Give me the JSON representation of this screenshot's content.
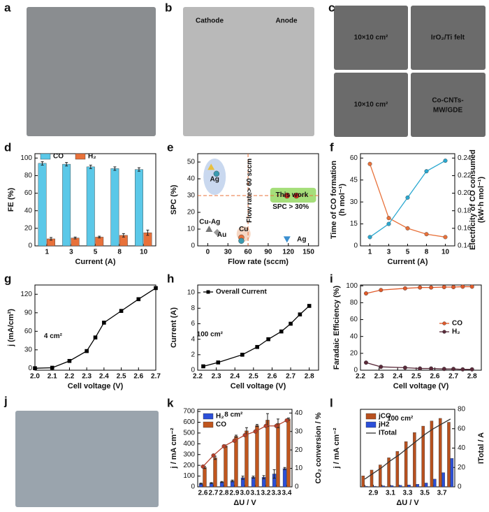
{
  "photos": [
    {
      "label": "a",
      "texts": []
    },
    {
      "label": "b",
      "texts": [
        "Cathode",
        "Anode"
      ]
    },
    {
      "label": "c",
      "texts": [
        "10×10 cm²",
        "IrO₂/Ti felt",
        "10×10 cm²",
        "Co-CNTs-",
        "MW/GDE"
      ]
    },
    {
      "label": "j",
      "texts": []
    }
  ],
  "chart_data": [
    {
      "type": "bar",
      "label": "d",
      "xlabel": "Current (A)",
      "ylabel": "FE (%)",
      "categories": [
        "1",
        "3",
        "5",
        "8",
        "10"
      ],
      "ylim": [
        0,
        105
      ],
      "yticks": [
        0,
        20,
        40,
        60,
        80,
        100
      ],
      "legend": "top",
      "series": [
        {
          "name": "CO",
          "color": "#5bc8e8",
          "values": [
            94,
            93,
            90,
            88,
            87
          ],
          "errors": [
            2,
            2,
            2,
            2,
            2
          ]
        },
        {
          "name": "H₂",
          "color": "#e8713a",
          "values": [
            8,
            9,
            10,
            12,
            15
          ],
          "errors": [
            1.5,
            1,
            1,
            2,
            3
          ]
        }
      ]
    },
    {
      "type": "scatter",
      "label": "e",
      "xlabel": "Flow rate (sccm)",
      "ylabel": "SPC (%)",
      "xlim": [
        -15,
        165
      ],
      "xticks": [
        0,
        30,
        60,
        90,
        120,
        150
      ],
      "ylim": [
        0,
        55
      ],
      "yticks": [
        0,
        10,
        20,
        30,
        40,
        50
      ],
      "hlines": [
        30
      ],
      "vlines": [
        60
      ],
      "x": [
        5,
        13,
        2,
        14,
        50,
        50,
        118,
        132,
        118
      ],
      "y": [
        47,
        43,
        10,
        8,
        5,
        3,
        30,
        30,
        4
      ],
      "colors": [
        "#e8c040",
        "#3a9ab0",
        "#777777",
        "#999999",
        "#e8713a",
        "#3a9ab0",
        "#d03020",
        "#d03020",
        "#3a8fd0"
      ],
      "markers": [
        "triangle",
        "circle",
        "triangle",
        "diamond",
        "circle",
        "circle",
        "circle",
        "circle",
        "triangle-down"
      ],
      "annotations": [
        "Ag",
        "Cu-Ag",
        "Au",
        "Cu",
        "This work",
        "SPC > 30%",
        "Flow rate> 60 sccm",
        "Ag"
      ]
    },
    {
      "type": "line",
      "label": "f",
      "xlabel": "Current (A)",
      "ylabel": [
        "Time of CO formation",
        "(h mol⁻¹)"
      ],
      "y2label": [
        "Electricity of CO consumed",
        "(kW·h mol⁻¹)"
      ],
      "categories": [
        "1",
        "3",
        "5",
        "8",
        "10"
      ],
      "ylim": [
        0,
        63
      ],
      "yticks": [
        0,
        15,
        30,
        45,
        60
      ],
      "y2lim": [
        0.14,
        0.245
      ],
      "y2ticks": [
        0.14,
        0.16,
        0.18,
        {
          "value": 0.2,
          "label": "0.20"
        },
        0.22,
        0.24
      ],
      "series": [
        {
          "color": "#e8713a",
          "marker": "circle",
          "values": [
            56,
            19,
            12,
            8,
            6
          ]
        },
        {
          "color": "#2aa8d0",
          "marker": "circle",
          "axis": "y2",
          "values": [
            0.15,
            0.165,
            0.195,
            0.225,
            0.237
          ]
        }
      ]
    },
    {
      "type": "line",
      "label": "g",
      "xlabel": "Cell voltage (V)",
      "ylabel": "j (mA/cm²)",
      "xlim": [
        2.0,
        2.7
      ],
      "xticks": [
        {
          "value": 2,
          "label": "2.0"
        },
        2.1,
        2.2,
        2.3,
        2.4,
        2.5,
        2.6,
        2.7
      ],
      "ylim": [
        -3,
        135
      ],
      "yticks": [
        0,
        30,
        60,
        90,
        120
      ],
      "annotations": [
        "4 cm²"
      ],
      "x": [
        2.0,
        2.1,
        2.2,
        2.3,
        2.35,
        2.4,
        2.5,
        2.6,
        2.7
      ],
      "series": [
        {
          "color": "#000000",
          "marker": "square",
          "values": [
            0.2,
            1,
            12,
            28,
            50,
            74,
            93,
            112,
            130
          ]
        }
      ]
    },
    {
      "type": "line",
      "label": "h",
      "xlabel": "Cell voltage (V)",
      "ylabel": "Current (A)",
      "xlim": [
        2.2,
        2.85
      ],
      "xticks": [
        2.2,
        2.3,
        2.4,
        2.5,
        2.6,
        2.7,
        2.8
      ],
      "ylim": [
        0,
        11
      ],
      "yticks": [
        0,
        2,
        4,
        6,
        8,
        10
      ],
      "legend": "upper left",
      "annotations": [
        "100 cm²"
      ],
      "x": [
        2.23,
        2.31,
        2.44,
        2.52,
        2.58,
        2.65,
        2.7,
        2.75,
        2.8
      ],
      "series": [
        {
          "name": "Overall Current",
          "color": "#000000",
          "marker": "square",
          "values": [
            0.5,
            1.0,
            2.0,
            3.0,
            4.0,
            5.0,
            6.0,
            7.2,
            8.3
          ]
        }
      ]
    },
    {
      "type": "line",
      "label": "i",
      "xlabel": "Cell voltage (V)",
      "ylabel": "Faradaic Efficiency (%)",
      "xlim": [
        2.2,
        2.85
      ],
      "xticks": [
        2.2,
        2.3,
        2.4,
        2.5,
        2.6,
        2.7,
        2.8
      ],
      "ylim": [
        0,
        101
      ],
      "yticks": [
        0,
        20,
        40,
        60,
        80,
        100
      ],
      "legend": "center right",
      "x": [
        2.23,
        2.31,
        2.44,
        2.52,
        2.58,
        2.65,
        2.7,
        2.75,
        2.8
      ],
      "series": [
        {
          "name": "CO",
          "color": "#e05a2a",
          "marker": "circle",
          "values": [
            91,
            95,
            97,
            98,
            98,
            98.5,
            98.5,
            99,
            99
          ]
        },
        {
          "name": "H₂",
          "color": "#5a2a3a",
          "marker": "circle",
          "values": [
            9,
            4,
            3,
            2,
            2,
            1.5,
            1.5,
            1,
            1
          ]
        }
      ]
    },
    {
      "type": "bar",
      "label": "k",
      "xlabel": "ΔU / V",
      "ylabel": "j / mA cm⁻²",
      "y2label": "CO₂ conversion / %",
      "categories": [
        "2.6",
        "2.7",
        "2.8",
        "2.9",
        "3.0",
        "3.1",
        "3.2",
        "3.3",
        "3.4"
      ],
      "ylim": [
        0,
        720
      ],
      "yticks": [
        0,
        100,
        200,
        300,
        400,
        500,
        600,
        700
      ],
      "y2lim": [
        0,
        42
      ],
      "y2ticks": [
        0,
        10,
        20,
        30,
        40
      ],
      "legend": "upper left",
      "annotations": [
        "8 cm²"
      ],
      "series": [
        {
          "name": "H₂",
          "color": "#2b4fd8",
          "values": [
            30,
            35,
            45,
            55,
            85,
            90,
            90,
            120,
            170
          ],
          "errors": [
            5,
            5,
            5,
            8,
            15,
            10,
            15,
            40,
            10
          ]
        },
        {
          "name": "CO",
          "color": "#c0561e",
          "values": [
            180,
            270,
            380,
            470,
            520,
            570,
            620,
            590,
            630
          ],
          "errors": [
            10,
            15,
            10,
            10,
            30,
            10,
            60,
            40,
            10
          ]
        },
        {
          "type": "line",
          "color": "#b5402a",
          "marker": "circle",
          "axis": "y2",
          "values": [
            11,
            17,
            22,
            25,
            28,
            30,
            33,
            33,
            36
          ]
        }
      ]
    },
    {
      "type": "bar",
      "label": "l",
      "xlabel": "ΔU / V",
      "ylabel": "j / mA cm⁻²",
      "y2label": "ITotal / A",
      "categories": [
        null,
        "2.9",
        null,
        "3.1",
        null,
        "3.3",
        null,
        "3.5",
        null,
        "3.7",
        null
      ],
      "ylim": [
        0,
        600
      ],
      "y2lim": [
        0,
        80
      ],
      "y2ticks": [
        0,
        20,
        40,
        60,
        80
      ],
      "legend": "upper left",
      "annotations": [
        "100 cm²"
      ],
      "series": [
        {
          "name": "jCO",
          "color": "#b8501e",
          "values": [
            85,
            130,
            170,
            225,
            275,
            350,
            420,
            470,
            510,
            530,
            500
          ]
        },
        {
          "name": "jH2",
          "color": "#2b4fd8",
          "values": [
            5,
            5,
            8,
            10,
            12,
            15,
            20,
            30,
            60,
            110,
            220
          ]
        },
        {
          "name": "ITotal",
          "type": "line",
          "color": "#333333",
          "marker": "none",
          "axis": "y2",
          "values": [
            8,
            14,
            20,
            27,
            33,
            40,
            47,
            54,
            60,
            65,
            70
          ]
        }
      ]
    }
  ]
}
